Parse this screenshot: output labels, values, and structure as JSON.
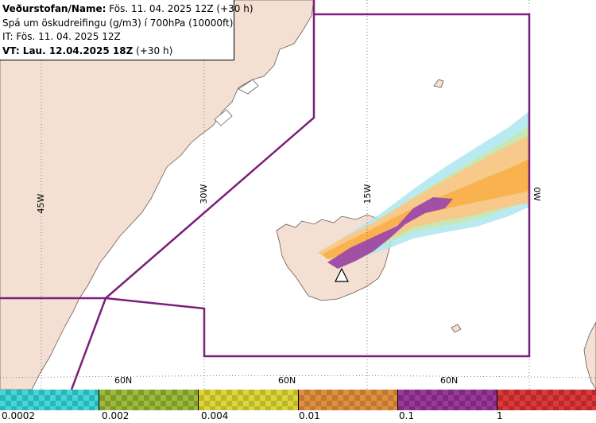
{
  "info": {
    "line1_label": "Veðurstofan/Name:",
    "line1_value": "Fös. 11. 04. 2025 12Z (+30 h)",
    "line2": "Spá um öskudreifingu (g/m3) í 700hPa (10000ft)",
    "line3": "IT: Fös. 11. 04. 2025 12Z",
    "line4_label": "VT: Lau. 12.04.2025 18Z",
    "line4_value": "(+30 h)"
  },
  "map": {
    "longitude_labels": [
      "45W",
      "30W",
      "15W",
      "0W"
    ],
    "latitude_labels": [
      "60N",
      "60N",
      "60N"
    ],
    "colors": {
      "land": "#f3e0d2",
      "sea": "#ffffff",
      "region_outline": "#7b1f7b",
      "ash_light": "#f7c98a",
      "ash_medium": "#f9b24d",
      "ash_heavy": "#a24fa6",
      "ash_faint": "#aee6ef",
      "ash_trace": "#c9e7a6"
    },
    "volcano_marker_icon": "triangle-icon"
  },
  "legend": {
    "labels": [
      "0.0002",
      "0.002",
      "0.004",
      "0.01",
      "0.1",
      "1"
    ],
    "segments": [
      {
        "color_a": "#45d7d6",
        "color_b": "#2bb5b8"
      },
      {
        "color_a": "#9cbb3d",
        "color_b": "#7f9a2a"
      },
      {
        "color_a": "#dcd63a",
        "color_b": "#bcb62a"
      },
      {
        "color_a": "#dc9040",
        "color_b": "#c27830"
      },
      {
        "color_a": "#9a3a98",
        "color_b": "#7c2a7c"
      },
      {
        "color_a": "#dc3a3a",
        "color_b": "#b82a2a"
      }
    ]
  }
}
